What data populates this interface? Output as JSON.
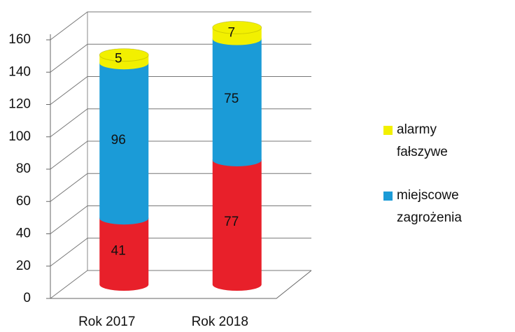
{
  "chart_data": {
    "type": "bar3d_stacked",
    "categories": [
      "Rok 2017",
      "Rok 2018"
    ],
    "series": [
      {
        "color": "#e8202a",
        "values": [
          41,
          77
        ]
      },
      {
        "name": "miejscowe zagrożenia",
        "color": "#1b9bd7",
        "values": [
          96,
          75
        ]
      },
      {
        "name": "alarmy fałszywe",
        "color": "#f2f000",
        "values": [
          5,
          7
        ]
      }
    ],
    "ylim": [
      0,
      160
    ],
    "yticks": [
      0,
      20,
      40,
      60,
      80,
      100,
      120,
      140,
      160
    ],
    "grid": true
  }
}
